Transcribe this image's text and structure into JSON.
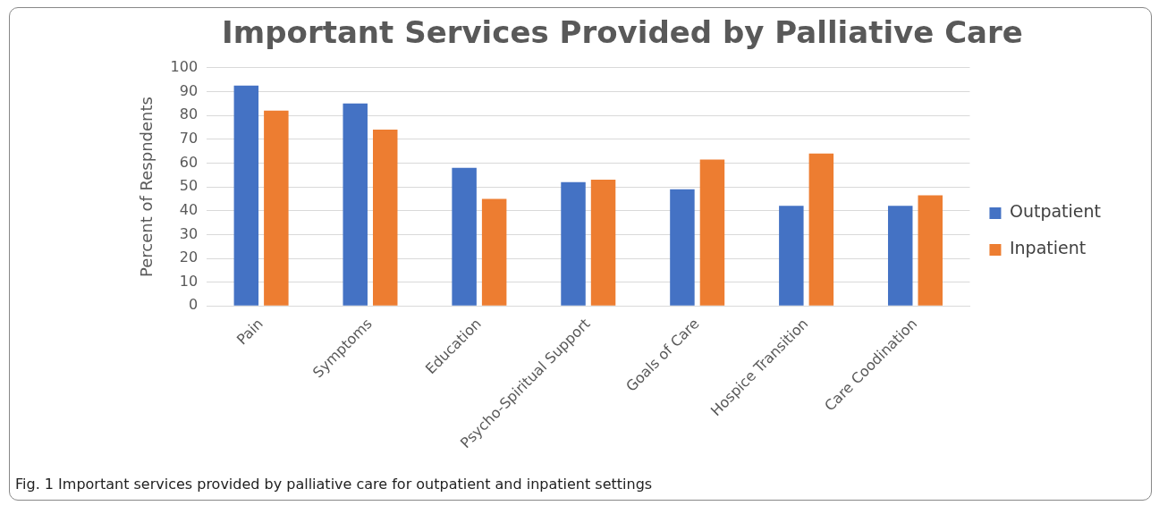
{
  "chart_data": {
    "type": "bar",
    "title": "Important Services Provided by Palliative Care",
    "ylabel": "Percent of Respndents",
    "categories": [
      "Pain",
      "Symptoms",
      "Education",
      "Psycho-Spiritual Support",
      "Goals of Care",
      "Hospice Transition",
      "Care Coodination"
    ],
    "series": [
      {
        "name": "Outpatient",
        "color": "#4472c4",
        "values": [
          92.5,
          85,
          58,
          52,
          49,
          42,
          42
        ]
      },
      {
        "name": "Inpatient",
        "color": "#ed7d31",
        "values": [
          82,
          74,
          45,
          53,
          61.5,
          64,
          46.5
        ]
      }
    ],
    "ylim": [
      0,
      100
    ],
    "yticks": [
      0,
      10,
      20,
      30,
      40,
      50,
      60,
      70,
      80,
      90,
      100
    ],
    "grid": "y",
    "legend": "right",
    "annotations": [
      "Fig. 1  Important services provided by palliative care for outpatient and inpatient settings"
    ]
  }
}
